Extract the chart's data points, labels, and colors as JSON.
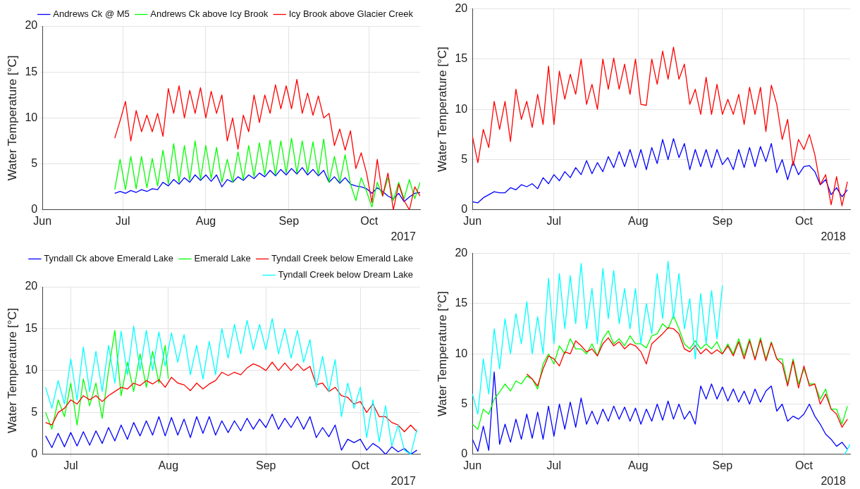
{
  "chart_data": [
    {
      "type": "line",
      "ylabel": "Water Temperature [°C]",
      "annotations": [
        "2017"
      ],
      "legend": "top right",
      "grid": true,
      "xlim": [
        "2017-06-01",
        "2017-10-20"
      ],
      "ylim": [
        0,
        20
      ],
      "yticks": [
        0,
        5,
        10,
        15,
        20
      ],
      "xticks": [
        {
          "value": "2017-06-01",
          "label": "Jun"
        },
        {
          "value": "2017-07-01",
          "label": "Jul"
        },
        {
          "value": "2017-08-01",
          "label": "Aug"
        },
        {
          "value": "2017-09-01",
          "label": "Sep"
        },
        {
          "value": "2017-10-01",
          "label": "Oct"
        }
      ],
      "x": [
        "2017-06-28",
        "2017-06-30",
        "2017-07-02",
        "2017-07-04",
        "2017-07-06",
        "2017-07-08",
        "2017-07-10",
        "2017-07-12",
        "2017-07-14",
        "2017-07-16",
        "2017-07-18",
        "2017-07-20",
        "2017-07-22",
        "2017-07-24",
        "2017-07-26",
        "2017-07-28",
        "2017-07-30",
        "2017-08-01",
        "2017-08-03",
        "2017-08-05",
        "2017-08-07",
        "2017-08-09",
        "2017-08-11",
        "2017-08-13",
        "2017-08-15",
        "2017-08-17",
        "2017-08-19",
        "2017-08-21",
        "2017-08-23",
        "2017-08-25",
        "2017-08-27",
        "2017-08-29",
        "2017-08-31",
        "2017-09-02",
        "2017-09-04",
        "2017-09-06",
        "2017-09-08",
        "2017-09-10",
        "2017-09-12",
        "2017-09-14",
        "2017-09-16",
        "2017-09-18",
        "2017-09-20",
        "2017-09-22",
        "2017-09-24",
        "2017-09-26",
        "2017-09-28",
        "2017-09-30",
        "2017-10-02",
        "2017-10-04",
        "2017-10-06",
        "2017-10-08",
        "2017-10-10",
        "2017-10-12",
        "2017-10-14",
        "2017-10-16",
        "2017-10-18",
        "2017-10-20"
      ],
      "series": [
        {
          "name": "Andrews Ck @ M5",
          "color": "#0000ff",
          "values": [
            1.8,
            2.0,
            1.8,
            2.1,
            1.9,
            2.2,
            2.0,
            2.3,
            2.2,
            3.0,
            2.6,
            3.3,
            2.8,
            3.5,
            3.0,
            3.8,
            3.2,
            3.8,
            3.1,
            3.8,
            2.5,
            3.3,
            3.0,
            3.6,
            3.2,
            3.8,
            3.4,
            4.0,
            3.6,
            4.3,
            3.7,
            4.4,
            3.8,
            4.5,
            3.9,
            4.6,
            3.8,
            4.4,
            3.7,
            4.3,
            3.0,
            3.6,
            2.9,
            3.5,
            2.8,
            2.6,
            2.5,
            2.3,
            1.8,
            2.4,
            2.0,
            1.5,
            1.2,
            1.8,
            0.9,
            1.4,
            1.8,
            1.9
          ]
        },
        {
          "name": "Andrews Ck above Icy Brook",
          "color": "#00ff00",
          "values": [
            2.2,
            5.5,
            2.2,
            5.8,
            2.3,
            5.8,
            2.4,
            5.6,
            2.6,
            6.5,
            2.8,
            7.2,
            3.0,
            7.0,
            3.2,
            7.5,
            3.3,
            7.0,
            3.4,
            6.8,
            3.0,
            5.5,
            3.0,
            6.3,
            3.3,
            7.0,
            3.6,
            7.3,
            3.8,
            7.6,
            3.8,
            7.5,
            4.0,
            7.8,
            4.0,
            7.5,
            4.0,
            7.4,
            3.8,
            7.7,
            3.0,
            5.8,
            3.0,
            6.0,
            2.8,
            1.0,
            3.5,
            2.0,
            0.3,
            3.0,
            1.5,
            3.5,
            1.0,
            3.0,
            1.2,
            3.3,
            1.2,
            3.0
          ]
        },
        {
          "name": "Icy Brook above Glacier Creek",
          "color": "#ff0000",
          "values": [
            7.8,
            9.7,
            11.8,
            7.5,
            10.8,
            8.5,
            10.3,
            8.5,
            10.5,
            8.0,
            13.2,
            10.5,
            13.5,
            10.0,
            13.0,
            10.5,
            13.3,
            10.0,
            12.9,
            10.5,
            12.5,
            7.5,
            10.0,
            6.6,
            10.3,
            8.5,
            12.5,
            9.5,
            12.5,
            10.5,
            13.6,
            11.0,
            13.5,
            11.0,
            14.2,
            10.5,
            12.7,
            10.3,
            12.4,
            10.0,
            10.5,
            7.0,
            8.8,
            6.5,
            8.6,
            4.5,
            6.2,
            4.0,
            0.8,
            5.5,
            1.5,
            4.0,
            0.0,
            2.8,
            1.0,
            0.0,
            2.5,
            1.5
          ]
        }
      ]
    },
    {
      "type": "line",
      "ylabel": "Water Temperature [°C]",
      "annotations": [
        "2018"
      ],
      "grid": true,
      "xlim": [
        "2018-06-01",
        "2018-10-18"
      ],
      "ylim": [
        0,
        20
      ],
      "yticks": [
        0,
        5,
        10,
        15,
        20
      ],
      "xticks": [
        {
          "value": "2018-06-01",
          "label": "Jun"
        },
        {
          "value": "2018-07-01",
          "label": "Jul"
        },
        {
          "value": "2018-08-01",
          "label": "Aug"
        },
        {
          "value": "2018-09-01",
          "label": "Sep"
        },
        {
          "value": "2018-10-01",
          "label": "Oct"
        }
      ],
      "x": [
        "2018-06-01",
        "2018-06-03",
        "2018-06-05",
        "2018-06-07",
        "2018-06-09",
        "2018-06-11",
        "2018-06-13",
        "2018-06-15",
        "2018-06-17",
        "2018-06-19",
        "2018-06-21",
        "2018-06-23",
        "2018-06-25",
        "2018-06-27",
        "2018-06-29",
        "2018-07-01",
        "2018-07-03",
        "2018-07-05",
        "2018-07-07",
        "2018-07-09",
        "2018-07-11",
        "2018-07-13",
        "2018-07-15",
        "2018-07-17",
        "2018-07-19",
        "2018-07-21",
        "2018-07-23",
        "2018-07-25",
        "2018-07-27",
        "2018-07-29",
        "2018-07-31",
        "2018-08-02",
        "2018-08-04",
        "2018-08-06",
        "2018-08-08",
        "2018-08-10",
        "2018-08-12",
        "2018-08-14",
        "2018-08-16",
        "2018-08-18",
        "2018-08-20",
        "2018-08-22",
        "2018-08-24",
        "2018-08-26",
        "2018-08-28",
        "2018-08-30",
        "2018-09-01",
        "2018-09-03",
        "2018-09-05",
        "2018-09-07",
        "2018-09-09",
        "2018-09-11",
        "2018-09-13",
        "2018-09-15",
        "2018-09-17",
        "2018-09-19",
        "2018-09-21",
        "2018-09-23",
        "2018-09-25",
        "2018-09-27",
        "2018-09-29",
        "2018-10-01",
        "2018-10-03",
        "2018-10-05",
        "2018-10-07",
        "2018-10-09",
        "2018-10-11",
        "2018-10-13",
        "2018-10-15",
        "2018-10-17"
      ],
      "series": [
        {
          "color": "#0000ff",
          "values": [
            0.8,
            0.7,
            1.2,
            1.5,
            1.8,
            1.7,
            1.7,
            2.2,
            2.0,
            2.5,
            2.3,
            2.6,
            2.1,
            3.2,
            2.6,
            3.5,
            2.9,
            3.8,
            3.2,
            4.2,
            3.5,
            4.9,
            3.6,
            4.7,
            3.8,
            5.3,
            4.2,
            5.8,
            4.3,
            6.0,
            4.2,
            6.0,
            4.0,
            6.2,
            4.6,
            7.0,
            5.0,
            7.1,
            5.2,
            6.6,
            4.0,
            6.0,
            4.3,
            6.0,
            4.2,
            6.0,
            4.5,
            5.2,
            4.0,
            6.0,
            4.2,
            6.2,
            4.3,
            6.3,
            4.8,
            6.6,
            3.7,
            5.0,
            3.0,
            4.8,
            3.5,
            4.3,
            4.4,
            3.8,
            2.5,
            3.0,
            1.5,
            2.2,
            1.3,
            2.0
          ]
        },
        {
          "color": "#ff0000",
          "values": [
            7.3,
            4.7,
            8.0,
            6.2,
            10.8,
            8.0,
            10.8,
            6.8,
            12.0,
            9.0,
            10.8,
            8.2,
            11.5,
            8.5,
            14.3,
            8.5,
            13.8,
            11.0,
            13.5,
            11.5,
            15.0,
            10.5,
            12.5,
            10.0,
            15.0,
            12.0,
            15.1,
            12.0,
            14.5,
            11.5,
            15.0,
            10.5,
            10.4,
            15.0,
            12.5,
            15.8,
            13.0,
            16.2,
            13.0,
            14.5,
            10.5,
            12.0,
            9.5,
            13.2,
            9.5,
            12.5,
            9.5,
            11.0,
            9.5,
            11.5,
            8.5,
            12.2,
            9.5,
            12.2,
            7.8,
            12.4,
            10.5,
            7.0,
            9.0,
            4.4,
            7.0,
            6.0,
            7.5,
            5.5,
            2.5,
            3.5,
            0.5,
            3.3,
            0.4,
            2.8
          ]
        }
      ]
    },
    {
      "type": "line",
      "ylabel": "Water Temperature [°C]",
      "annotations": [
        "2017"
      ],
      "legend": "top right",
      "grid": true,
      "xlim": [
        "2017-06-22",
        "2017-10-20"
      ],
      "ylim": [
        0,
        20
      ],
      "yticks": [
        0,
        5,
        10,
        15,
        20
      ],
      "xticks": [
        {
          "value": "2017-07-01",
          "label": "Jul"
        },
        {
          "value": "2017-08-01",
          "label": "Aug"
        },
        {
          "value": "2017-09-01",
          "label": "Sep"
        },
        {
          "value": "2017-10-01",
          "label": "Oct"
        }
      ],
      "x": [
        "2017-06-23",
        "2017-06-25",
        "2017-06-27",
        "2017-06-29",
        "2017-07-01",
        "2017-07-03",
        "2017-07-05",
        "2017-07-07",
        "2017-07-09",
        "2017-07-11",
        "2017-07-13",
        "2017-07-15",
        "2017-07-17",
        "2017-07-19",
        "2017-07-21",
        "2017-07-23",
        "2017-07-25",
        "2017-07-27",
        "2017-07-29",
        "2017-07-31",
        "2017-08-02",
        "2017-08-04",
        "2017-08-06",
        "2017-08-08",
        "2017-08-10",
        "2017-08-12",
        "2017-08-14",
        "2017-08-16",
        "2017-08-18",
        "2017-08-20",
        "2017-08-22",
        "2017-08-24",
        "2017-08-26",
        "2017-08-28",
        "2017-08-30",
        "2017-09-01",
        "2017-09-03",
        "2017-09-05",
        "2017-09-07",
        "2017-09-09",
        "2017-09-11",
        "2017-09-13",
        "2017-09-15",
        "2017-09-17",
        "2017-09-19",
        "2017-09-21",
        "2017-09-23",
        "2017-09-25",
        "2017-09-27",
        "2017-09-29",
        "2017-10-01",
        "2017-10-03",
        "2017-10-05",
        "2017-10-07",
        "2017-10-09",
        "2017-10-11",
        "2017-10-13",
        "2017-10-15",
        "2017-10-17",
        "2017-10-19"
      ],
      "series": [
        {
          "name": "Tyndall Ck above Emerald Lake",
          "color": "#0000ff",
          "values": [
            2.2,
            0.8,
            2.5,
            0.9,
            2.6,
            1.0,
            2.7,
            1.1,
            2.8,
            1.3,
            3.2,
            1.6,
            3.5,
            1.8,
            3.8,
            2.2,
            4.0,
            2.3,
            4.5,
            2.2,
            4.4,
            2.3,
            4.2,
            2.0,
            4.5,
            2.5,
            4.5,
            2.3,
            4.0,
            2.6,
            4.0,
            2.8,
            4.3,
            3.0,
            4.2,
            3.2,
            4.8,
            3.0,
            4.3,
            3.2,
            4.5,
            3.0,
            4.5,
            2.0,
            3.2,
            2.1,
            3.5,
            0.5,
            1.8,
            1.4,
            1.8,
            0.5,
            1.3,
            0.8,
            0.0,
            0.9,
            0.3,
            0.7,
            0.0,
            0.5
          ]
        },
        {
          "name": "Emerald Lake",
          "color": "#00ff00",
          "x": [
            "2017-06-23",
            "2017-06-25",
            "2017-06-27",
            "2017-06-29",
            "2017-07-01",
            "2017-07-03",
            "2017-07-05",
            "2017-07-07",
            "2017-07-09",
            "2017-07-11",
            "2017-07-13",
            "2017-07-15",
            "2017-07-17",
            "2017-07-19",
            "2017-07-21",
            "2017-07-23",
            "2017-07-25",
            "2017-07-27",
            "2017-07-29",
            "2017-07-31",
            "2017-08-01"
          ],
          "values": [
            5.0,
            3.0,
            6.5,
            4.5,
            8.5,
            3.5,
            9.0,
            5.8,
            8.5,
            4.3,
            10.0,
            14.8,
            7.0,
            11.0,
            7.5,
            12.0,
            8.0,
            12.3,
            8.5,
            13.0,
            9.0
          ]
        },
        {
          "name": "Tyndall Creek below Emerald Lake",
          "color": "#ff0000",
          "values": [
            3.8,
            3.5,
            5.0,
            5.5,
            6.5,
            6.0,
            7.0,
            6.5,
            7.0,
            6.3,
            7.0,
            7.5,
            8.0,
            7.8,
            8.5,
            8.2,
            8.8,
            8.4,
            8.9,
            8.0,
            9.2,
            8.5,
            8.3,
            7.6,
            8.5,
            7.8,
            8.4,
            8.8,
            9.8,
            9.4,
            9.8,
            9.5,
            10.3,
            10.8,
            10.5,
            10.0,
            11.0,
            10.0,
            10.9,
            10.0,
            10.8,
            10.0,
            10.5,
            8.3,
            8.5,
            7.5,
            8.0,
            7.0,
            6.8,
            6.0,
            6.3,
            5.0,
            6.0,
            4.5,
            4.5,
            3.8,
            3.5,
            2.7,
            3.5,
            2.7
          ]
        },
        {
          "name": "Tyndall Creek below Dream Lake",
          "color": "#00ffff",
          "values": [
            8.0,
            5.5,
            8.8,
            6.0,
            11.4,
            6.5,
            12.8,
            7.5,
            12.3,
            7.5,
            13.0,
            8.5,
            14.7,
            9.5,
            15.3,
            10.0,
            14.8,
            10.0,
            14.6,
            10.5,
            14.5,
            11.0,
            14.3,
            9.5,
            13.0,
            9.0,
            13.5,
            9.5,
            15.0,
            11.5,
            15.5,
            12.0,
            16.0,
            12.5,
            15.5,
            12.5,
            16.2,
            12.0,
            15.0,
            11.5,
            14.8,
            11.0,
            13.7,
            8.0,
            11.7,
            7.5,
            11.3,
            4.5,
            8.5,
            5.5,
            8.0,
            2.0,
            6.5,
            1.5,
            5.8,
            1.0,
            3.5,
            0.5,
            0.0,
            3.0
          ]
        }
      ]
    },
    {
      "type": "line",
      "ylabel": "Water Temperature [°C]",
      "annotations": [
        "2018"
      ],
      "grid": true,
      "xlim": [
        "2018-06-01",
        "2018-10-18"
      ],
      "ylim": [
        0,
        20
      ],
      "yticks": [
        0,
        5,
        10,
        15,
        20
      ],
      "xticks": [
        {
          "value": "2018-06-01",
          "label": "Jun"
        },
        {
          "value": "2018-07-01",
          "label": "Jul"
        },
        {
          "value": "2018-08-01",
          "label": "Aug"
        },
        {
          "value": "2018-09-01",
          "label": "Sep"
        },
        {
          "value": "2018-10-01",
          "label": "Oct"
        }
      ],
      "x": [
        "2018-06-01",
        "2018-06-03",
        "2018-06-05",
        "2018-06-07",
        "2018-06-09",
        "2018-06-11",
        "2018-06-13",
        "2018-06-15",
        "2018-06-17",
        "2018-06-19",
        "2018-06-21",
        "2018-06-23",
        "2018-06-25",
        "2018-06-27",
        "2018-06-29",
        "2018-07-01",
        "2018-07-03",
        "2018-07-05",
        "2018-07-07",
        "2018-07-09",
        "2018-07-11",
        "2018-07-13",
        "2018-07-15",
        "2018-07-17",
        "2018-07-19",
        "2018-07-21",
        "2018-07-23",
        "2018-07-25",
        "2018-07-27",
        "2018-07-29",
        "2018-07-31",
        "2018-08-02",
        "2018-08-04",
        "2018-08-06",
        "2018-08-08",
        "2018-08-10",
        "2018-08-12",
        "2018-08-14",
        "2018-08-16",
        "2018-08-18",
        "2018-08-20",
        "2018-08-22",
        "2018-08-24",
        "2018-08-26",
        "2018-08-28",
        "2018-08-30",
        "2018-09-01",
        "2018-09-03",
        "2018-09-05",
        "2018-09-07",
        "2018-09-09",
        "2018-09-11",
        "2018-09-13",
        "2018-09-15",
        "2018-09-17",
        "2018-09-19",
        "2018-09-21",
        "2018-09-23",
        "2018-09-25",
        "2018-09-27",
        "2018-09-29",
        "2018-10-01",
        "2018-10-03",
        "2018-10-05",
        "2018-10-07",
        "2018-10-09",
        "2018-10-11",
        "2018-10-13",
        "2018-10-15",
        "2018-10-17"
      ],
      "series": [
        {
          "color": "#0000ff",
          "values": [
            1.5,
            0.3,
            2.8,
            0.4,
            8.2,
            1.0,
            3.0,
            1.2,
            3.5,
            1.5,
            4.0,
            1.6,
            4.2,
            1.5,
            4.8,
            1.8,
            5.0,
            2.5,
            5.2,
            2.7,
            5.6,
            3.0,
            4.3,
            3.0,
            4.5,
            3.3,
            4.8,
            3.5,
            4.7,
            3.3,
            4.6,
            3.0,
            4.5,
            3.3,
            5.0,
            3.4,
            5.3,
            3.5,
            5.0,
            3.5,
            4.3,
            3.0,
            6.8,
            5.5,
            7.0,
            5.5,
            6.7,
            5.3,
            6.5,
            5.2,
            6.3,
            5.0,
            6.5,
            5.2,
            6.3,
            6.8,
            4.3,
            5.0,
            3.3,
            3.8,
            3.5,
            4.0,
            5.0,
            3.8,
            3.0,
            2.0,
            1.5,
            0.8,
            1.2,
            0.5
          ]
        },
        {
          "color": "#00ff00",
          "values": [
            3.0,
            2.5,
            4.5,
            4.0,
            5.5,
            6.2,
            7.0,
            6.3,
            7.3,
            7.0,
            7.8,
            7.5,
            6.5,
            9.0,
            10.0,
            9.0,
            10.8,
            10.0,
            11.5,
            10.5,
            10.5,
            10.0,
            11.0,
            9.8,
            11.5,
            12.3,
            11.0,
            11.5,
            10.8,
            11.8,
            11.0,
            11.0,
            10.6,
            11.8,
            12.0,
            13.0,
            12.5,
            13.8,
            12.5,
            11.0,
            10.5,
            11.3,
            10.5,
            11.0,
            10.5,
            11.2,
            10.0,
            11.0,
            10.0,
            11.5,
            9.8,
            11.5,
            9.5,
            11.6,
            9.5,
            11.2,
            9.5,
            9.5,
            7.0,
            9.5,
            7.0,
            8.5,
            7.0,
            7.0,
            5.5,
            6.5,
            4.5,
            4.5,
            3.0,
            4.8
          ]
        },
        {
          "color": "#ff0000",
          "x": [
            "2018-06-21",
            "2018-06-23",
            "2018-06-25",
            "2018-06-27",
            "2018-06-29",
            "2018-07-01",
            "2018-07-03",
            "2018-07-05",
            "2018-07-07",
            "2018-07-09",
            "2018-07-11",
            "2018-07-13",
            "2018-07-15",
            "2018-07-17",
            "2018-07-19",
            "2018-07-21",
            "2018-07-23",
            "2018-07-25",
            "2018-07-27",
            "2018-07-29",
            "2018-07-31",
            "2018-08-02",
            "2018-08-04",
            "2018-08-06",
            "2018-08-08",
            "2018-08-10",
            "2018-08-12",
            "2018-08-14",
            "2018-08-16",
            "2018-08-18",
            "2018-08-20",
            "2018-08-22",
            "2018-08-24",
            "2018-08-26",
            "2018-08-28",
            "2018-08-30",
            "2018-09-01",
            "2018-09-03",
            "2018-09-05",
            "2018-09-07",
            "2018-09-09",
            "2018-09-11",
            "2018-09-13",
            "2018-09-15",
            "2018-09-17",
            "2018-09-19",
            "2018-09-21",
            "2018-09-23",
            "2018-09-25",
            "2018-09-27",
            "2018-09-29",
            "2018-10-01",
            "2018-10-03",
            "2018-10-05",
            "2018-10-07",
            "2018-10-09",
            "2018-10-11",
            "2018-10-13",
            "2018-10-15",
            "2018-10-17"
          ],
          "values": [
            8.0,
            7.5,
            6.8,
            8.5,
            9.8,
            9.5,
            8.8,
            10.2,
            10.0,
            11.3,
            10.8,
            10.2,
            10.5,
            9.8,
            11.0,
            11.6,
            10.8,
            11.2,
            10.5,
            11.0,
            10.8,
            10.2,
            9.0,
            11.0,
            11.5,
            12.0,
            12.6,
            12.5,
            12.0,
            10.5,
            10.2,
            10.8,
            10.0,
            10.5,
            10.0,
            10.4,
            10.0,
            10.8,
            9.8,
            11.2,
            9.5,
            11.3,
            9.4,
            11.4,
            9.3,
            11.1,
            9.5,
            9.0,
            6.8,
            9.3,
            6.6,
            8.8,
            6.8,
            7.0,
            5.0,
            6.0,
            4.5,
            4.0,
            2.7,
            3.5
          ]
        },
        {
          "color": "#00ffff",
          "x": [
            "2018-06-01",
            "2018-06-03",
            "2018-06-05",
            "2018-06-07",
            "2018-06-09",
            "2018-06-11",
            "2018-06-13",
            "2018-06-15",
            "2018-06-17",
            "2018-06-19",
            "2018-06-21",
            "2018-06-23",
            "2018-06-25",
            "2018-06-27",
            "2018-06-29",
            "2018-07-01",
            "2018-07-03",
            "2018-07-05",
            "2018-07-07",
            "2018-07-09",
            "2018-07-11",
            "2018-07-13",
            "2018-07-15",
            "2018-07-17",
            "2018-07-19",
            "2018-07-21",
            "2018-07-23",
            "2018-07-25",
            "2018-07-27",
            "2018-07-29",
            "2018-07-31",
            "2018-08-02",
            "2018-08-04",
            "2018-08-06",
            "2018-08-08",
            "2018-08-10",
            "2018-08-12",
            "2018-08-14",
            "2018-08-16",
            "2018-08-18",
            "2018-08-20",
            "2018-08-22",
            "2018-08-24",
            "2018-08-26",
            "2018-08-28",
            "2018-08-30",
            "2018-09-01",
            "2018-09-02",
            "2018-10-16",
            "2018-10-18"
          ],
          "values": [
            6.0,
            4.0,
            9.5,
            6.0,
            12.5,
            8.5,
            13.5,
            10.0,
            14.0,
            11.0,
            15.2,
            10.0,
            13.7,
            10.0,
            17.5,
            11.0,
            18.0,
            12.5,
            17.8,
            13.0,
            19.0,
            12.5,
            16.5,
            11.0,
            18.5,
            13.5,
            18.3,
            13.0,
            16.5,
            12.5,
            16.5,
            11.0,
            15.0,
            12.0,
            18.0,
            13.5,
            19.2,
            13.5,
            18.0,
            12.5,
            15.5,
            9.5,
            16.0,
            11.0,
            16.3,
            11.5,
            16.8,
            null,
            0.0,
            1.0
          ]
        }
      ]
    }
  ]
}
